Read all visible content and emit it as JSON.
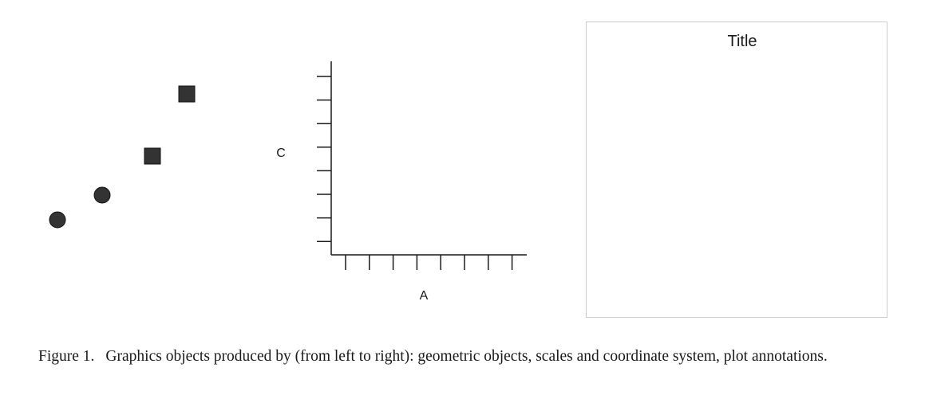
{
  "figure": {
    "geometric_objects": [
      {
        "shape": "circle",
        "color": "#333333"
      },
      {
        "shape": "circle",
        "color": "#333333"
      },
      {
        "shape": "square",
        "color": "#333333"
      },
      {
        "shape": "square",
        "color": "#333333"
      }
    ],
    "scales": {
      "x_label": "A",
      "y_label": "C",
      "x_tick_count": 8,
      "y_tick_count": 8
    },
    "annotation_panel": {
      "title": "Title",
      "border_color": "#cccccc"
    }
  },
  "caption": {
    "label": "Figure 1.",
    "text": "Graphics objects produced by (from left to right): geometric objects, scales and coordinate system, plot annotations."
  }
}
